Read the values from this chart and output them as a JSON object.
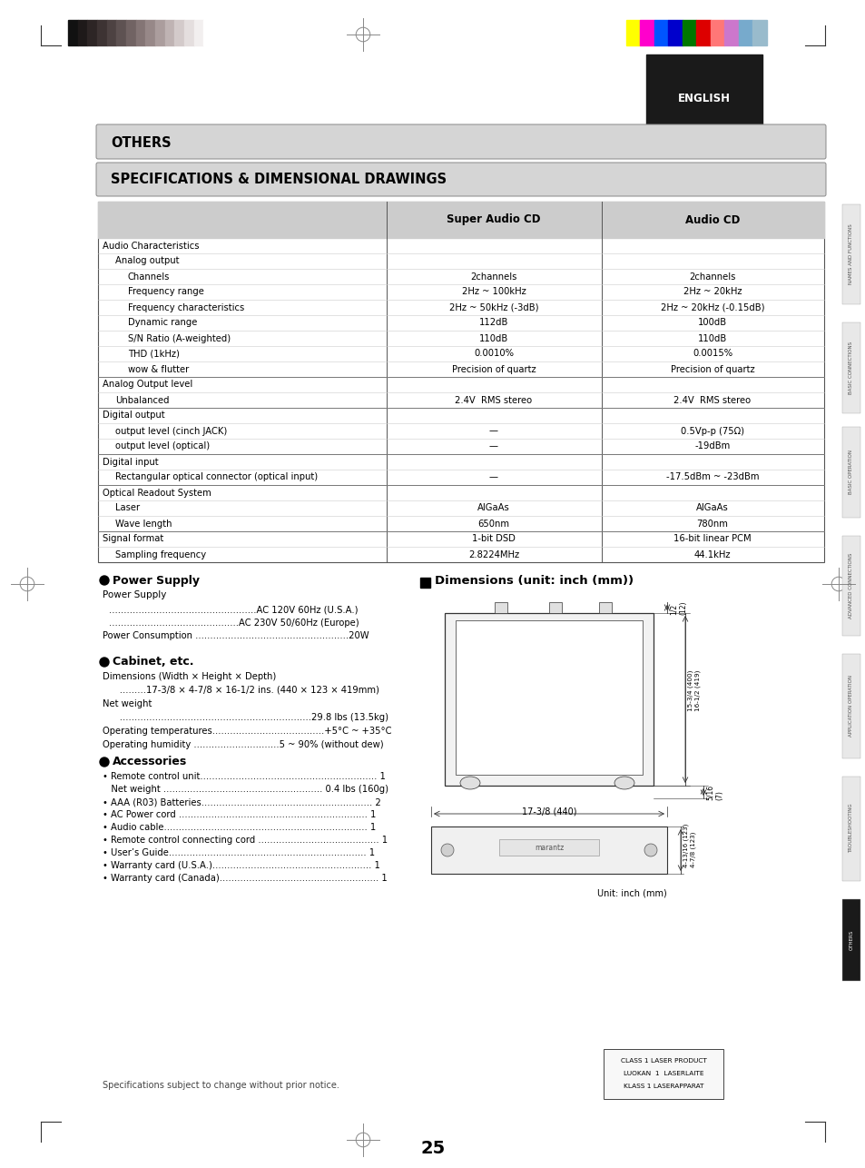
{
  "page_bg": "#ffffff",
  "bw_colors": [
    "#111111",
    "#1e1919",
    "#2d2525",
    "#3d3333",
    "#4d4242",
    "#5e5252",
    "#716363",
    "#847575",
    "#978888",
    "#ab9d9d",
    "#bfb3b3",
    "#d3caca",
    "#e4dede",
    "#f2efef",
    "#ffffff"
  ],
  "rgb_colors": [
    "#ffff00",
    "#ff00cc",
    "#0055ff",
    "#0000cc",
    "#007700",
    "#dd0000",
    "#ff7777",
    "#cc77cc",
    "#77aacc",
    "#99bbcc"
  ],
  "title_others": "OTHERS",
  "title_spec": "SPECIFICATIONS & DIMENSIONAL DRAWINGS",
  "col_header1": "Super Audio CD",
  "col_header2": "Audio CD",
  "table_rows": [
    [
      "Audio Characteristics",
      "",
      ""
    ],
    [
      "    Analog output",
      "",
      ""
    ],
    [
      "        Channels",
      "2channels",
      "2channels"
    ],
    [
      "        Frequency range",
      "2Hz ~ 100kHz",
      "2Hz ~ 20kHz"
    ],
    [
      "        Frequency characteristics",
      "2Hz ~ 50kHz (-3dB)",
      "2Hz ~ 20kHz (-0.15dB)"
    ],
    [
      "        Dynamic range",
      "112dB",
      "100dB"
    ],
    [
      "        S/N Ratio (A-weighted)",
      "110dB",
      "110dB"
    ],
    [
      "        THD (1kHz)",
      "0.0010%",
      "0.0015%"
    ],
    [
      "        wow & flutter",
      "Precision of quartz",
      "Precision of quartz"
    ],
    [
      "Analog Output level",
      "",
      ""
    ],
    [
      "    Unbalanced",
      "2.4V  RMS stereo",
      "2.4V  RMS stereo"
    ],
    [
      "Digital output",
      "",
      ""
    ],
    [
      "    output level (cinch JACK)",
      "—",
      "0.5Vp-p (75Ω)"
    ],
    [
      "    output level (optical)",
      "—",
      "-19dBm"
    ],
    [
      "Digital input",
      "",
      ""
    ],
    [
      "    Rectangular optical connector (optical input)",
      "—",
      "-17.5dBm ~ -23dBm"
    ],
    [
      "Optical Readout System",
      "",
      ""
    ],
    [
      "    Laser",
      "AlGaAs",
      "AlGaAs"
    ],
    [
      "    Wave length",
      "650nm",
      "780nm"
    ],
    [
      "Signal format",
      "1-bit DSD",
      "16-bit linear PCM"
    ],
    [
      "    Sampling frequency",
      "2.8224MHz",
      "44.1kHz"
    ]
  ],
  "group_separator_rows": [
    9,
    11,
    14,
    16,
    19
  ],
  "power_supply_title": "Power Supply",
  "power_supply_lines": [
    "Power Supply",
    "..................................................AC 120V 60Hz (U.S.A.)",
    "............................................AC 230V 50/60Hz (Europe)",
    "Power Consumption ....................................................20W"
  ],
  "cabinet_title": "Cabinet, etc.",
  "cabinet_lines": [
    "Dimensions (Width × Height × Depth)",
    "      .........17-3/8 × 4-7/8 × 16-1/2 ins. (440 × 123 × 419mm)",
    "Net weight",
    "      .................................................................29.8 lbs (13.5kg)",
    "Operating temperatures......................................+5°C ~ +35°C",
    "Operating humidity .............................5 ~ 90% (without dew)"
  ],
  "accessories_title": "Accessories",
  "accessories_lines": [
    "• Remote control unit............................................................ 1",
    "   Net weight ...................................................... 0.4 lbs (160g)",
    "• AAA (R03) Batteries.......................................................... 2",
    "• AC Power cord ................................................................ 1",
    "• Audio cable..................................................................... 1",
    "• Remote control connecting cord ......................................... 1",
    "• User’s Guide................................................................... 1",
    "• Warranty card (U.S.A.)...................................................... 1",
    "• Warranty card (Canada)...................................................... 1"
  ],
  "dim_title": "Dimensions (unit: inch (mm))",
  "spec_note": "Specifications subject to change without prior notice.",
  "page_number": "25",
  "side_labels": [
    "NAMES AND FUNCTIONS",
    "BASIC CONNECTIONS",
    "BASIC OPERATION",
    "ADVANCED CONNECTIONS",
    "APPLICATION OPERATION",
    "TROUBLESHOOTING",
    "OTHERS"
  ],
  "side_y": [
    225,
    355,
    470,
    590,
    720,
    855,
    990
  ],
  "side_h": [
    110,
    100,
    100,
    110,
    115,
    115,
    90
  ],
  "english_label": "ENGLISH"
}
